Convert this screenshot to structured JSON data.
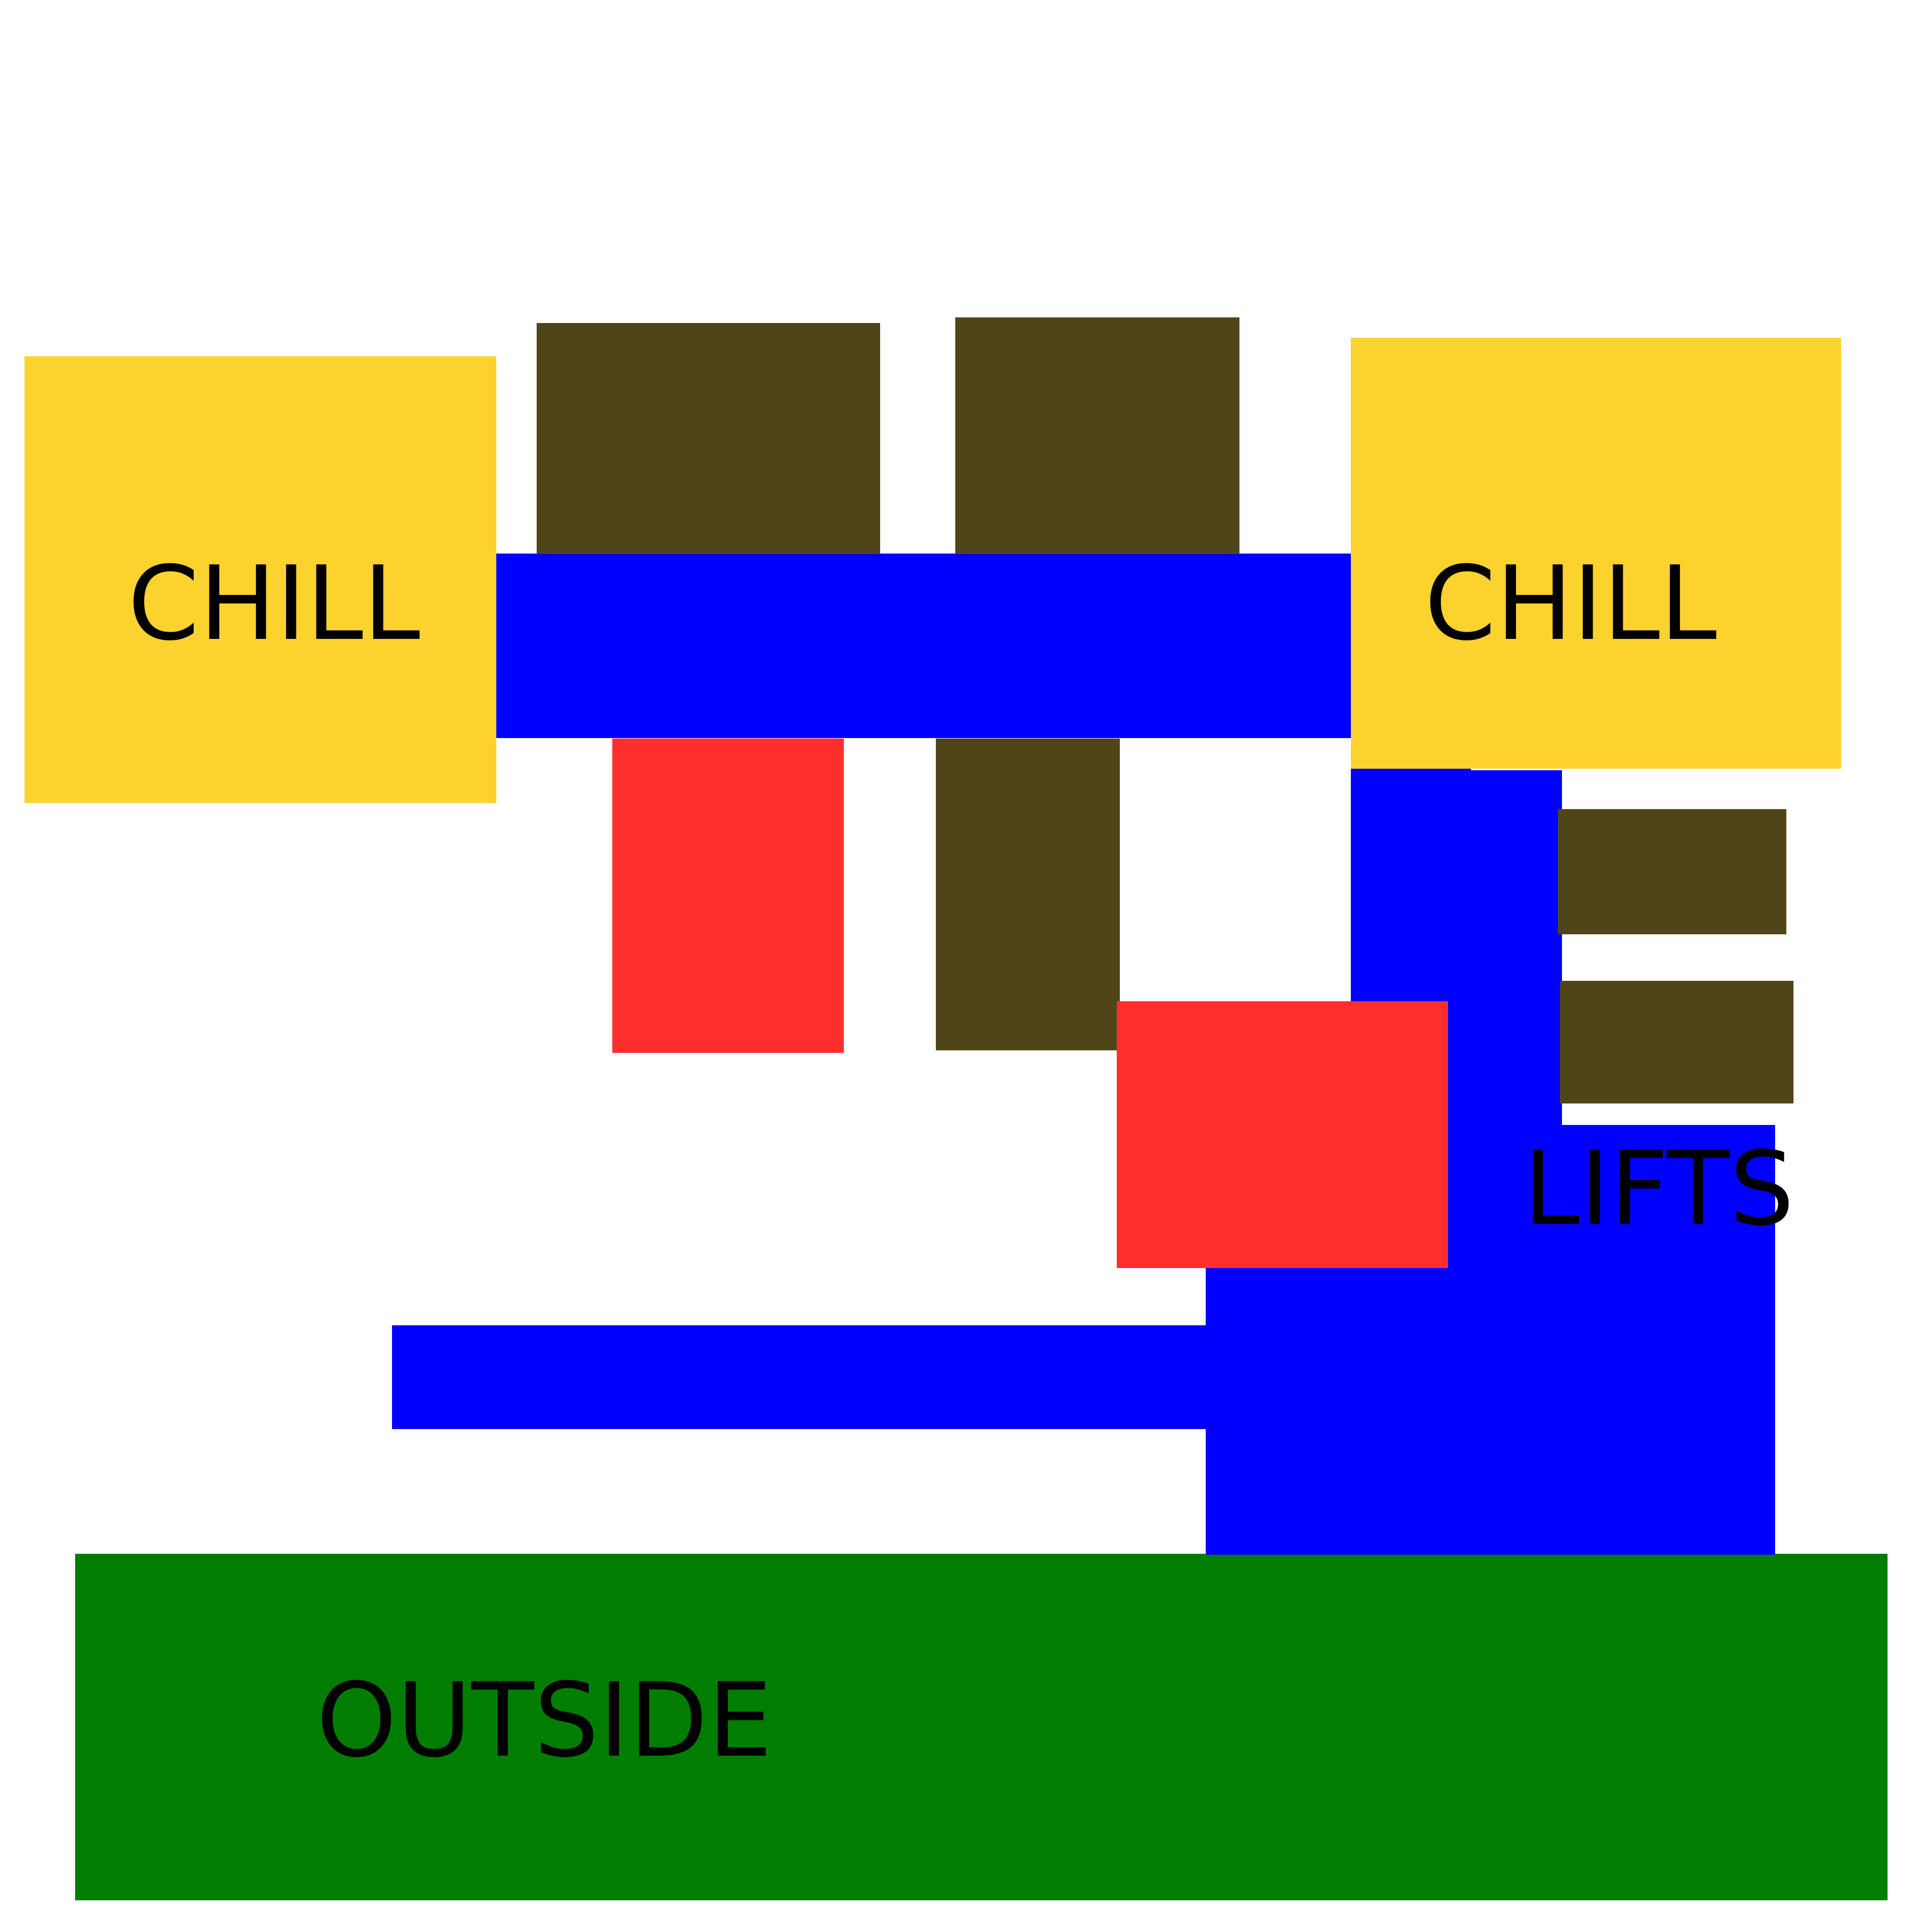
{
  "labels": {
    "chill_left": "CHILL",
    "chill_right": "CHILL",
    "lifts": "LIFTS",
    "outside": "OUTSIDE"
  },
  "colors": {
    "chill": "#FCD22F",
    "corridor": "#0000FF",
    "brown_block": "#504519",
    "red_block": "#FF2E2E",
    "outside": "#017E01",
    "background": "#FFFFFF"
  }
}
